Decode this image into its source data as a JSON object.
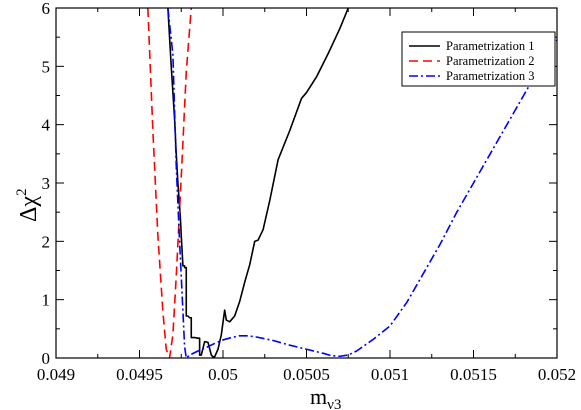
{
  "chart_data": {
    "type": "line",
    "title": "",
    "xlabel": {
      "main": "m",
      "sub": "ν3"
    },
    "ylabel": {
      "main": "Δχ",
      "sup": "2"
    },
    "xlim": [
      0.049,
      0.052
    ],
    "ylim": [
      0,
      6
    ],
    "xticks": [
      0.049,
      0.0495,
      0.05,
      0.0505,
      0.051,
      0.0515,
      0.052
    ],
    "xtick_labels": [
      "0.049",
      "0.0495",
      "0.05",
      "0.0505",
      "0.051",
      "0.0515",
      "0.052"
    ],
    "yticks": [
      0,
      1,
      2,
      3,
      4,
      5,
      6
    ],
    "ytick_labels": [
      "0",
      "1",
      "2",
      "3",
      "4",
      "5",
      "6"
    ],
    "grid": false,
    "legend_position": "top-right",
    "series": [
      {
        "name": "Parametrization 1",
        "color": "#000000",
        "dash": "solid",
        "x": [
          0.04967,
          0.04969,
          0.04971,
          0.04972,
          0.04973,
          0.04974,
          0.049745,
          0.04975,
          0.04976,
          0.04977,
          0.04977,
          0.04978,
          0.04978,
          0.04979,
          0.0498,
          0.04981,
          0.04981,
          0.04983,
          0.04985,
          0.04986,
          0.04986,
          0.04987,
          0.04989,
          0.04991,
          0.04993,
          0.04994,
          0.04995,
          0.04997,
          0.04999,
          0.05001,
          0.05002,
          0.05004,
          0.05007,
          0.0501,
          0.05013,
          0.05016,
          0.05019,
          0.05021,
          0.05024,
          0.05028,
          0.05033,
          0.0504,
          0.05047,
          0.0505,
          0.05056,
          0.05063,
          0.0507,
          0.05075
        ],
        "y": [
          6.0,
          5.0,
          4.1,
          3.5,
          3.0,
          2.6,
          2.4,
          2.1,
          1.58,
          1.58,
          1.55,
          1.55,
          0.72,
          0.72,
          0.69,
          0.69,
          0.35,
          0.35,
          0.34,
          0.34,
          0.05,
          0.05,
          0.28,
          0.27,
          0.05,
          0.02,
          0.02,
          0.15,
          0.4,
          0.82,
          0.65,
          0.62,
          0.72,
          0.97,
          1.3,
          1.6,
          2.0,
          2.02,
          2.2,
          2.7,
          3.4,
          3.9,
          4.45,
          4.55,
          4.82,
          5.22,
          5.65,
          6.0
        ]
      },
      {
        "name": "Parametrization 2",
        "color": "#ff0000",
        "dash": "dashed",
        "x": [
          0.04955,
          0.04958,
          0.04961,
          0.04964,
          0.04966,
          0.04968,
          0.0497,
          0.04972,
          0.04975,
          0.04978,
          0.04981
        ],
        "y": [
          6.0,
          3.9,
          2.1,
          0.8,
          0.15,
          0.0,
          0.4,
          1.4,
          3.1,
          4.9,
          6.0
        ]
      },
      {
        "name": "Parametrization 3",
        "color": "#0000ff",
        "dash": "dash-dot",
        "x": [
          0.04967,
          0.0497,
          0.04972,
          0.04974,
          0.04976,
          0.04977,
          0.04978,
          0.0498,
          0.04985,
          0.0499,
          0.04995,
          0.05,
          0.05005,
          0.0501,
          0.05015,
          0.0502,
          0.0503,
          0.0504,
          0.0505,
          0.0506,
          0.05065,
          0.0507,
          0.05075,
          0.0508,
          0.0509,
          0.051,
          0.0511,
          0.0512,
          0.0513,
          0.0514,
          0.0515,
          0.0516,
          0.0517,
          0.0518,
          0.0519,
          0.052
        ],
        "y": [
          6.0,
          5.2,
          3.3,
          2.0,
          0.8,
          0.2,
          0.0,
          0.05,
          0.12,
          0.18,
          0.25,
          0.31,
          0.35,
          0.38,
          0.38,
          0.36,
          0.3,
          0.22,
          0.15,
          0.08,
          0.04,
          0.03,
          0.05,
          0.12,
          0.32,
          0.55,
          0.95,
          1.45,
          1.95,
          2.5,
          3.0,
          3.5,
          4.0,
          4.5,
          5.0,
          5.45
        ]
      }
    ]
  }
}
